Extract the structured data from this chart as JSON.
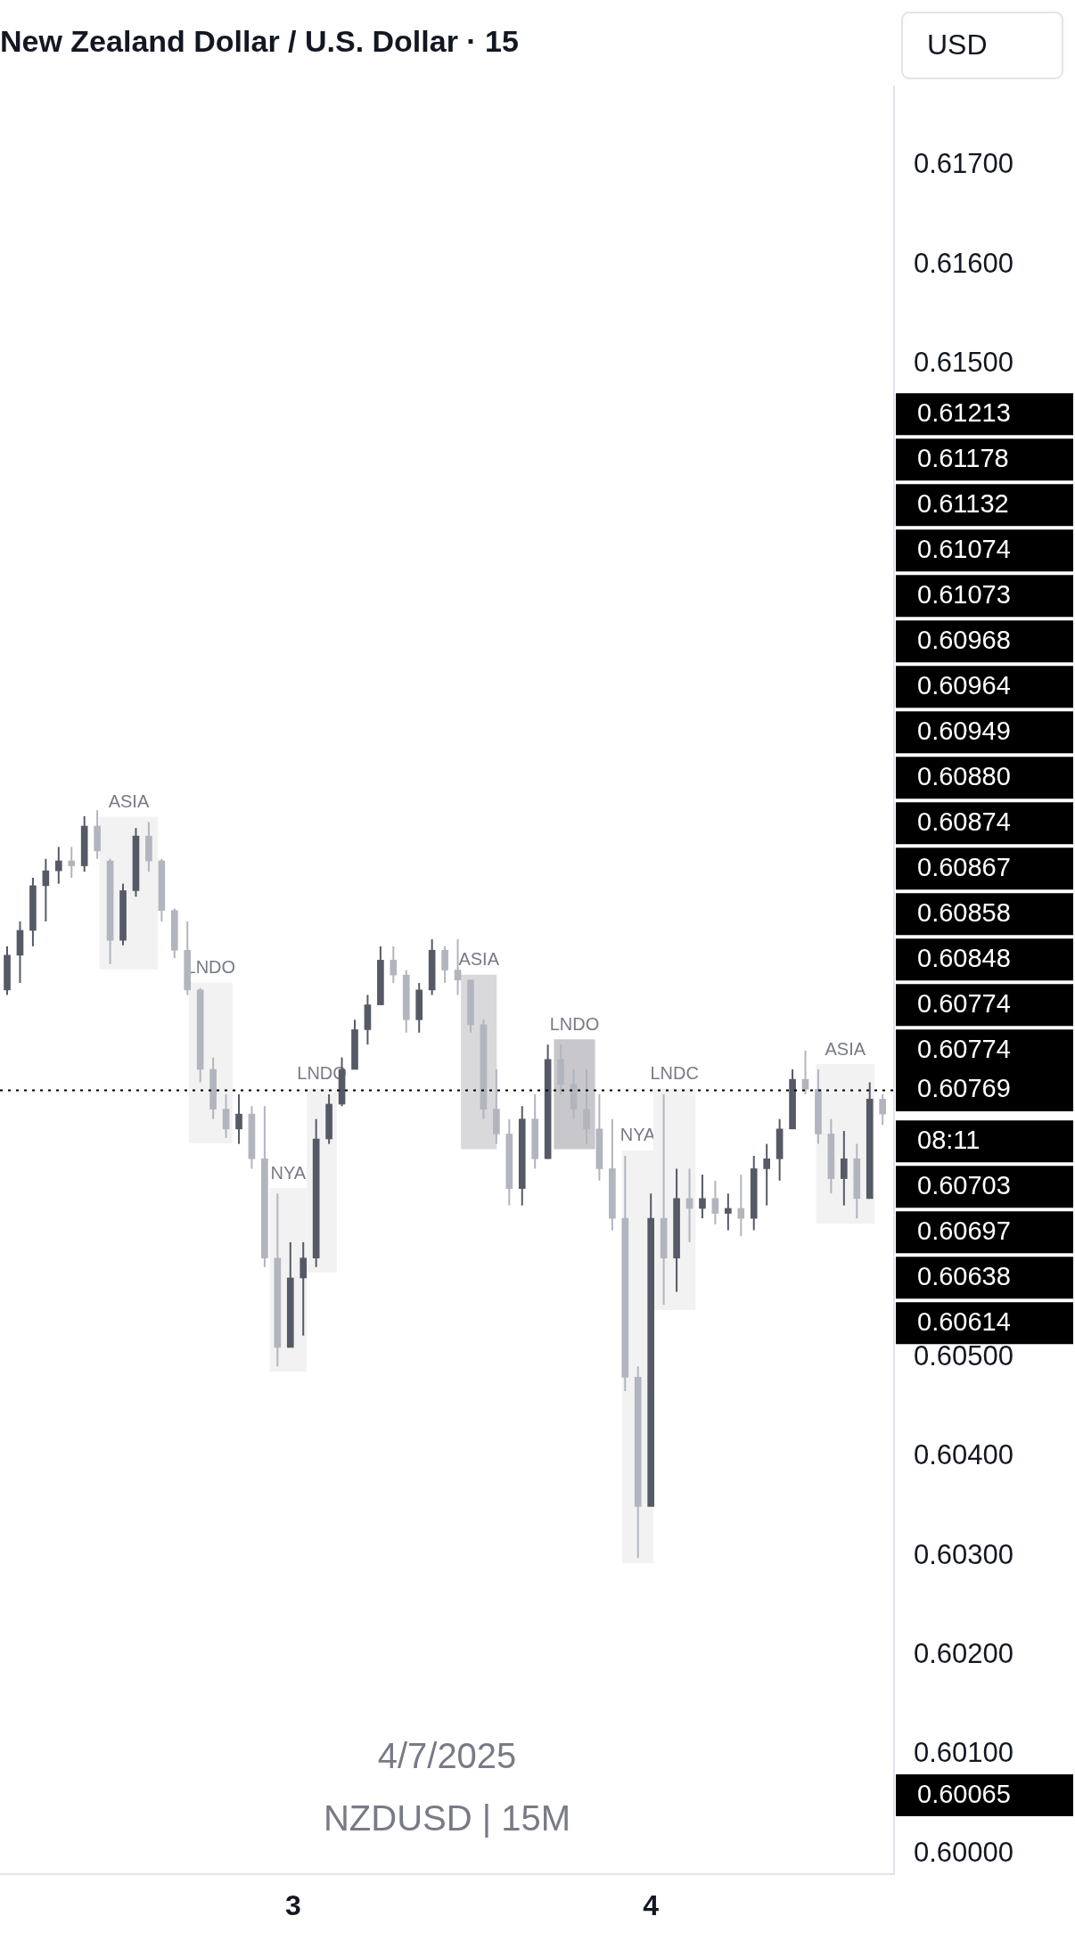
{
  "chart_data": {
    "type": "candlestick",
    "title": "New Zealand Dollar / U.S. Dollar · 15",
    "colors": [
      "#565a66",
      "#565a66",
      "#565a66",
      "#565a66",
      "#565a66",
      "#b2b5be",
      "#565a66",
      "#b2b5be",
      "#b2b5be",
      "#565a66",
      "#565a66",
      "#b2b5be",
      "#b2b5be",
      "#b2b5be",
      "#b2b5be",
      "#b2b5be",
      "#b2b5be",
      "#b2b5be",
      "#565a66",
      "#b2b5be",
      "#b2b5be",
      "#b2b5be",
      "#565a66",
      "#565a66",
      "#565a66",
      "#565a66",
      "#565a66",
      "#565a66",
      "#565a66",
      "#565a66",
      "#b2b5be",
      "#b2b5be",
      "#565a66",
      "#565a66",
      "#b2b5be",
      "#b2b5be",
      "#b2b5be",
      "#b2b5be",
      "#b2b5be",
      "#b2b5be",
      "#565a66",
      "#b2b5be",
      "#565a66",
      "#b2b5be",
      "#b2b5be",
      "#b2b5be",
      "#b2b5be",
      "#b2b5be",
      "#b2b5be",
      "#b2b5be",
      "#565a66",
      "#b2b5be",
      "#565a66",
      "#b2b5be",
      "#565a66",
      "#b2b5be",
      "#565a66",
      "#b2b5be",
      "#565a66",
      "#565a66",
      "#565a66",
      "#565a66",
      "#b2b5be",
      "#b2b5be",
      "#b2b5be",
      "#565a66",
      "#b2b5be",
      "#565a66",
      "#b2b5be"
    ],
    "legend": false,
    "grid": false,
    "x": [
      2.2,
      2.236,
      2.272,
      2.308,
      2.344,
      2.38,
      2.416,
      2.452,
      2.488,
      2.524,
      2.56,
      2.596,
      2.632,
      2.668,
      2.704,
      2.74,
      2.776,
      2.812,
      2.848,
      2.884,
      2.92,
      2.956,
      2.992,
      3.028,
      3.064,
      3.1,
      3.136,
      3.172,
      3.208,
      3.244,
      3.28,
      3.316,
      3.352,
      3.388,
      3.424,
      3.46,
      3.496,
      3.532,
      3.568,
      3.604,
      3.64,
      3.676,
      3.712,
      3.748,
      3.784,
      3.82,
      3.856,
      3.892,
      3.928,
      3.964,
      4.0,
      4.036,
      4.072,
      4.108,
      4.144,
      4.18,
      4.216,
      4.252,
      4.288,
      4.324,
      4.36,
      4.396,
      4.432,
      4.468,
      4.504,
      4.54,
      4.576,
      4.612,
      4.648
    ],
    "ohlc": [
      [
        0.6087,
        0.60914,
        0.60865,
        0.60905
      ],
      [
        0.60905,
        0.60939,
        0.60877,
        0.6093
      ],
      [
        0.6093,
        0.60983,
        0.60914,
        0.60975
      ],
      [
        0.60975,
        0.61002,
        0.60939,
        0.6099
      ],
      [
        0.6099,
        0.61014,
        0.60977,
        0.61
      ],
      [
        0.61,
        0.61014,
        0.60983,
        0.60995
      ],
      [
        0.60995,
        0.61045,
        0.60989,
        0.61035
      ],
      [
        0.61035,
        0.61051,
        0.61002,
        0.6101
      ],
      [
        0.61,
        0.61002,
        0.60896,
        0.6092
      ],
      [
        0.6092,
        0.60977,
        0.60915,
        0.6097
      ],
      [
        0.6097,
        0.61033,
        0.60964,
        0.61025
      ],
      [
        0.61025,
        0.61039,
        0.60989,
        0.61
      ],
      [
        0.61,
        0.61002,
        0.60939,
        0.6095
      ],
      [
        0.6095,
        0.60952,
        0.60902,
        0.6091
      ],
      [
        0.6091,
        0.60939,
        0.60865,
        0.6087
      ],
      [
        0.6087,
        0.60872,
        0.60777,
        0.6079
      ],
      [
        0.6079,
        0.60802,
        0.6074,
        0.6075
      ],
      [
        0.6075,
        0.60765,
        0.60721,
        0.6073
      ],
      [
        0.6073,
        0.60765,
        0.60715,
        0.60745
      ],
      [
        0.60745,
        0.60753,
        0.6069,
        0.607
      ],
      [
        0.607,
        0.60753,
        0.60591,
        0.606
      ],
      [
        0.606,
        0.60665,
        0.60491,
        0.6051
      ],
      [
        0.6051,
        0.60616,
        0.6051,
        0.6058
      ],
      [
        0.6058,
        0.60616,
        0.60522,
        0.606
      ],
      [
        0.606,
        0.6074,
        0.60591,
        0.6072
      ],
      [
        0.6072,
        0.60765,
        0.60715,
        0.60755
      ],
      [
        0.60755,
        0.60802,
        0.60753,
        0.6079
      ],
      [
        0.6079,
        0.6084,
        0.6079,
        0.6083
      ],
      [
        0.6083,
        0.60865,
        0.60815,
        0.60855
      ],
      [
        0.60855,
        0.60914,
        0.60855,
        0.609
      ],
      [
        0.609,
        0.60914,
        0.60877,
        0.60885
      ],
      [
        0.60885,
        0.6089,
        0.60827,
        0.6084
      ],
      [
        0.6084,
        0.60877,
        0.60827,
        0.6087
      ],
      [
        0.6087,
        0.60921,
        0.60865,
        0.6091
      ],
      [
        0.6091,
        0.60914,
        0.60877,
        0.6089
      ],
      [
        0.6089,
        0.60921,
        0.60865,
        0.6088
      ],
      [
        0.6088,
        0.6088,
        0.60827,
        0.60835
      ],
      [
        0.60835,
        0.6084,
        0.6074,
        0.6075
      ],
      [
        0.6075,
        0.6079,
        0.60715,
        0.60725
      ],
      [
        0.60725,
        0.6074,
        0.60653,
        0.6067
      ],
      [
        0.6067,
        0.60753,
        0.60653,
        0.6074
      ],
      [
        0.6074,
        0.60765,
        0.6069,
        0.607
      ],
      [
        0.607,
        0.60815,
        0.607,
        0.608
      ],
      [
        0.608,
        0.60815,
        0.60765,
        0.60775
      ],
      [
        0.60775,
        0.6079,
        0.6074,
        0.6075
      ],
      [
        0.6075,
        0.6079,
        0.60715,
        0.6073
      ],
      [
        0.6073,
        0.60765,
        0.60678,
        0.6069
      ],
      [
        0.6069,
        0.6074,
        0.60628,
        0.6064
      ],
      [
        0.6064,
        0.60703,
        0.60466,
        0.6048
      ],
      [
        0.6048,
        0.60491,
        0.60298,
        0.6035
      ],
      [
        0.6035,
        0.60665,
        0.6035,
        0.6064
      ],
      [
        0.6064,
        0.60765,
        0.60553,
        0.606
      ],
      [
        0.606,
        0.6069,
        0.60566,
        0.6066
      ],
      [
        0.6066,
        0.6069,
        0.60616,
        0.6065
      ],
      [
        0.6065,
        0.60684,
        0.6064,
        0.6066
      ],
      [
        0.6066,
        0.60678,
        0.60634,
        0.60645
      ],
      [
        0.60645,
        0.60665,
        0.60628,
        0.6065
      ],
      [
        0.6065,
        0.60684,
        0.60622,
        0.6064
      ],
      [
        0.6064,
        0.60703,
        0.60628,
        0.6069
      ],
      [
        0.6069,
        0.60715,
        0.60653,
        0.607
      ],
      [
        0.607,
        0.6074,
        0.60678,
        0.6073
      ],
      [
        0.6073,
        0.6079,
        0.6073,
        0.6078
      ],
      [
        0.6078,
        0.60809,
        0.60765,
        0.6077
      ],
      [
        0.6077,
        0.6079,
        0.60715,
        0.60725
      ],
      [
        0.60725,
        0.6074,
        0.60665,
        0.6068
      ],
      [
        0.6068,
        0.60728,
        0.60653,
        0.607
      ],
      [
        0.607,
        0.60715,
        0.6064,
        0.6066
      ],
      [
        0.6066,
        0.60777,
        0.6066,
        0.6076
      ],
      [
        0.6076,
        0.60765,
        0.60734,
        0.60745
      ]
    ],
    "xlim": [
      2.18,
      4.68
    ],
    "xticks": [
      {
        "value": 3,
        "label": "3"
      },
      {
        "value": 4,
        "label": "4"
      }
    ],
    "ylim": [
      0.5998,
      0.6178
    ],
    "yticks": [
      {
        "value": 0.6,
        "label": "0.60000"
      },
      {
        "value": 0.601,
        "label": "0.60100"
      },
      {
        "value": 0.602,
        "label": "0.60200"
      },
      {
        "value": 0.603,
        "label": "0.60300"
      },
      {
        "value": 0.604,
        "label": "0.60400"
      },
      {
        "value": 0.605,
        "label": "0.60500"
      },
      {
        "value": 0.615,
        "label": "0.61500"
      },
      {
        "value": 0.616,
        "label": "0.61600"
      },
      {
        "value": 0.617,
        "label": "0.61700"
      }
    ],
    "ref_lines": [
      {
        "axis": "y",
        "value": 0.60769,
        "label": "0.60769",
        "line_style": "dotted",
        "color": "#000000"
      }
    ],
    "annotations": [
      "USD",
      "0.61213",
      "0.61178",
      "0.61132",
      "0.61074",
      "0.61073",
      "0.60968",
      "0.60964",
      "0.60949",
      "0.60880",
      "0.60874",
      "0.60867",
      "0.60858",
      "0.60848",
      "0.60774",
      "0.60774",
      "08:11",
      "0.60703",
      "0.60697",
      "0.60638",
      "0.60614",
      "0.60065",
      "4/7/2025",
      "NZDUSD | 15M"
    ],
    "bands": [
      {
        "axis": "x",
        "from": 2.458,
        "to": 2.622,
        "label": "ASIA",
        "color": "#f2f2f2"
      },
      {
        "axis": "x",
        "from": 2.708,
        "to": 2.83,
        "label": "LNDO",
        "color": "#f2f2f2"
      },
      {
        "axis": "x",
        "from": 2.934,
        "to": 3.038,
        "label": "NYA",
        "color": "#f2f2f2"
      },
      {
        "axis": "x",
        "from": 3.038,
        "to": 3.122,
        "label": "LNDO",
        "color": "#f2f2f2"
      },
      {
        "axis": "x",
        "from": 3.469,
        "to": 3.569,
        "label": "ASIA",
        "color": "#d9d9db"
      },
      {
        "axis": "x",
        "from": 3.729,
        "to": 3.844,
        "label": "LNDO",
        "color": "#c8c8cc"
      },
      {
        "axis": "x",
        "from": 3.92,
        "to": 4.007,
        "label": "NYA",
        "color": "#f2f2f2"
      },
      {
        "axis": "x",
        "from": 4.007,
        "to": 4.125,
        "label": "LNDC",
        "color": "#f2f2f2"
      },
      {
        "axis": "x",
        "from": 4.462,
        "to": 4.625,
        "label": "ASIA",
        "color": "#f2f2f2"
      }
    ]
  }
}
